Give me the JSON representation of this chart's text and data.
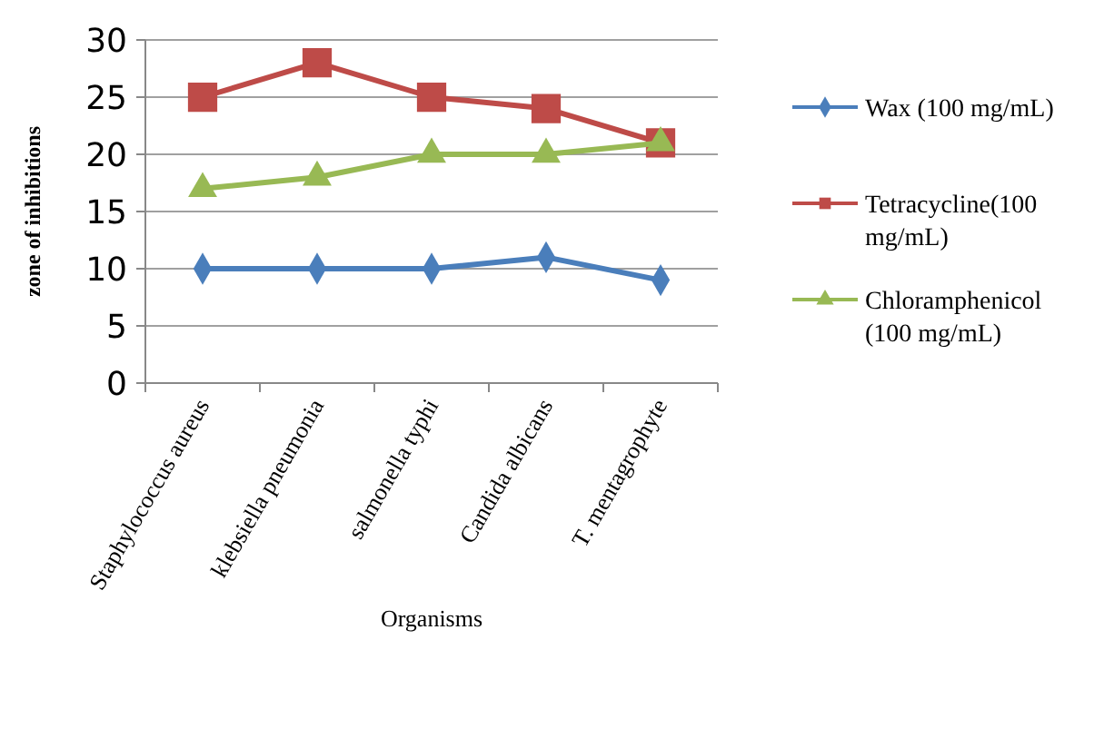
{
  "chart_data": {
    "type": "line",
    "xlabel": "Organisms",
    "ylabel": "zone of inhibitions",
    "categories": [
      "Staphylococcus aureus",
      "klebsiella pneumonia",
      "salmonella typhi",
      "Candida albicans",
      "T. mentagrophyte"
    ],
    "series": [
      {
        "name": "Wax (100 mg/mL)",
        "color": "#4a7ebb",
        "marker": "diamond",
        "values": [
          10,
          10,
          10,
          11,
          9
        ]
      },
      {
        "name": "Tetracycline(100 mg/mL)",
        "color": "#be4b48",
        "marker": "square",
        "values": [
          25,
          28,
          25,
          24,
          21
        ]
      },
      {
        "name": "Chloramphenicol (100 mg/mL)",
        "color": "#98b954",
        "marker": "triangle",
        "values": [
          17,
          18,
          20,
          20,
          21
        ]
      }
    ],
    "ylim": [
      0,
      30
    ],
    "yticks": [
      0,
      5,
      10,
      15,
      20,
      25,
      30
    ],
    "grid": "y",
    "legend": "right",
    "line_style": "solid"
  }
}
